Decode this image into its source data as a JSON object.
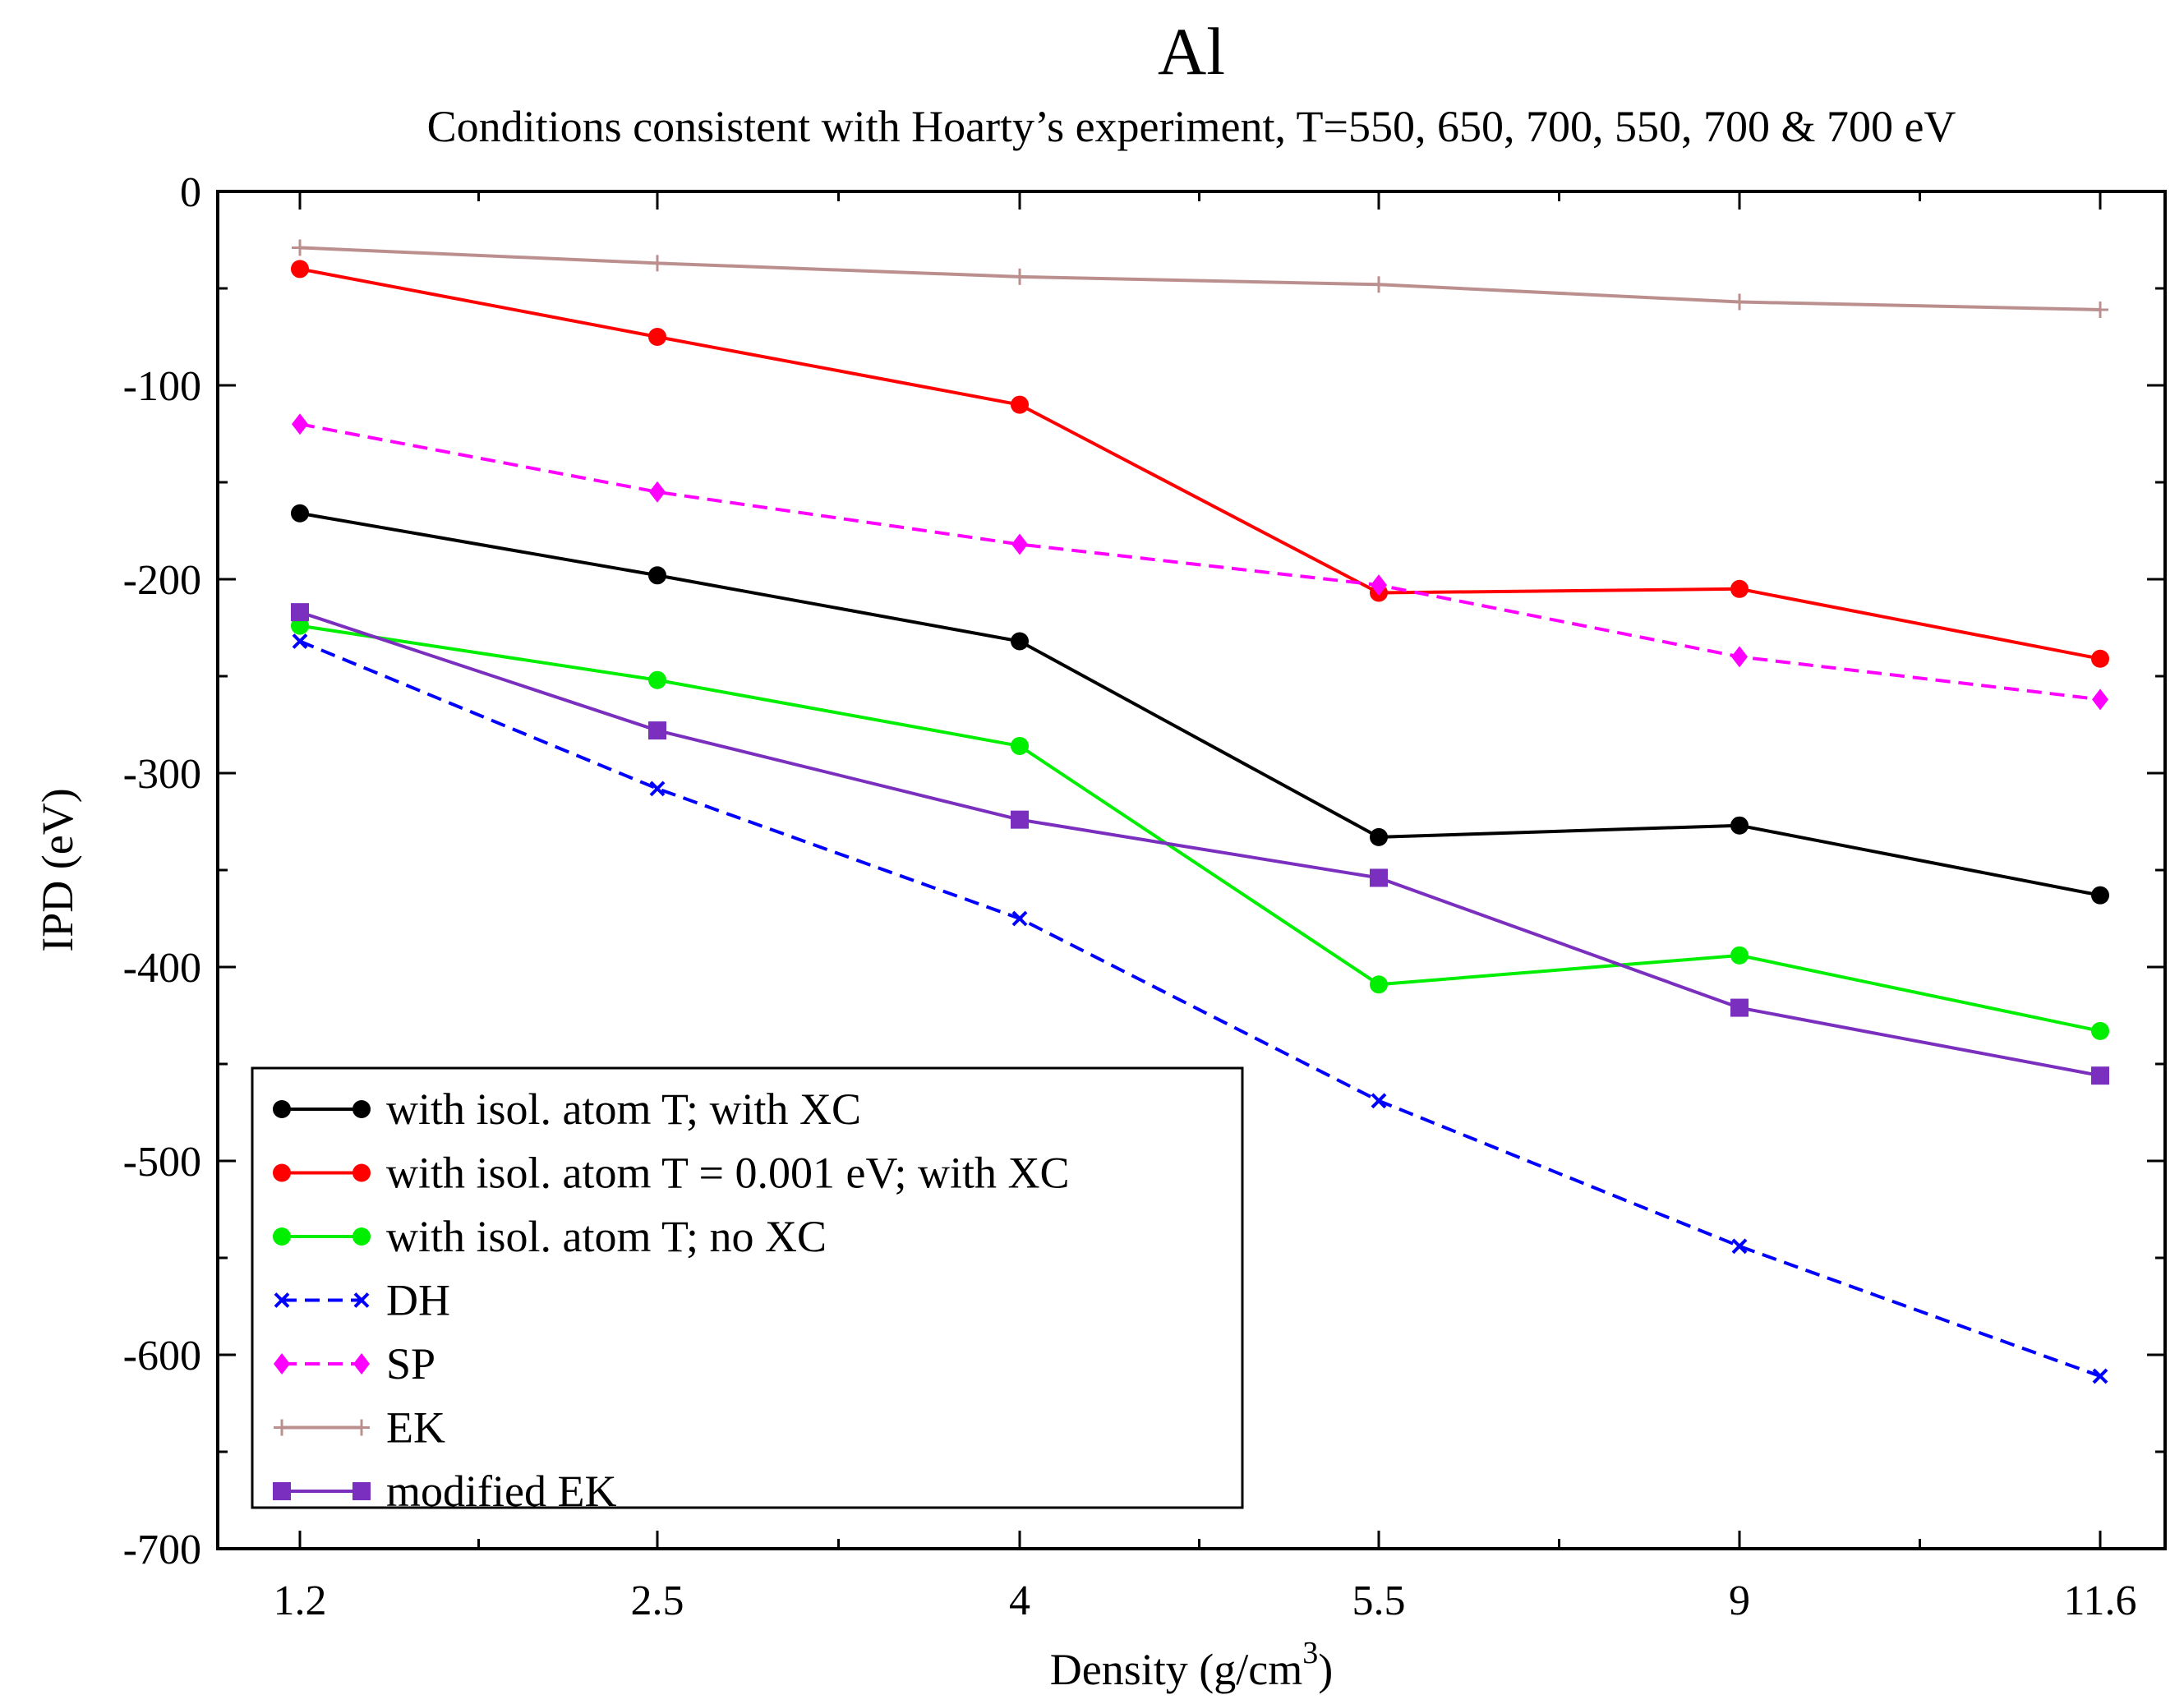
{
  "chart_data": {
    "type": "line",
    "title": "Al",
    "subtitle": "Conditions consistent with Hoarty’s experiment, T=550, 650, 700, 550, 700 & 700 eV",
    "xlabel": "Density (g/cm",
    "xlabel_sup": "3",
    "xlabel_close": ")",
    "ylabel": "IPD (eV)",
    "categories": [
      "1.2",
      "2.5",
      "4",
      "5.5",
      "9",
      "11.6"
    ],
    "ylim": [
      -700,
      0
    ],
    "yticks": [
      0,
      -100,
      -200,
      -300,
      -400,
      -500,
      -600,
      -700
    ],
    "grid": false,
    "legend_position": "bottom-left",
    "series": [
      {
        "name": "with isol. atom T; with XC",
        "color": "#000000",
        "marker": "circle",
        "dash": false,
        "values": [
          -166,
          -198,
          -232,
          -333,
          -327,
          -363
        ]
      },
      {
        "name": "with isol. atom T = 0.001 eV; with XC",
        "color": "#ff0000",
        "marker": "circle",
        "dash": false,
        "values": [
          -40,
          -75,
          -110,
          -207,
          -205,
          -241
        ]
      },
      {
        "name": "with isol. atom T; no XC",
        "color": "#00ee00",
        "marker": "circle",
        "dash": false,
        "values": [
          -224,
          -252,
          -286,
          -409,
          -394,
          -433
        ]
      },
      {
        "name": "DH",
        "color": "#0000ff",
        "marker": "x",
        "dash": true,
        "values": [
          -232,
          -308,
          -375,
          -469,
          -544,
          -611
        ]
      },
      {
        "name": "SP",
        "color": "#ff00ff",
        "marker": "diamond",
        "dash": true,
        "values": [
          -120,
          -155,
          -182,
          -203,
          -240,
          -262
        ]
      },
      {
        "name": "EK",
        "color": "#bc8f8f",
        "marker": "plus",
        "dash": false,
        "values": [
          -29,
          -37,
          -44,
          -48,
          -57,
          -61
        ]
      },
      {
        "name": "modified EK",
        "color": "#7b2fbe",
        "marker": "square",
        "dash": false,
        "values": [
          -217,
          -278,
          -324,
          -354,
          -421,
          -456
        ]
      }
    ]
  }
}
